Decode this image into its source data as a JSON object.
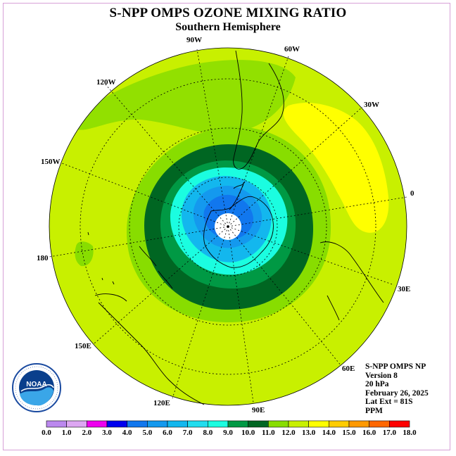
{
  "title": "S-NPP OMPS OZONE MIXING RATIO",
  "subtitle": "Southern Hemisphere",
  "longitude_labels": [
    "90W",
    "60W",
    "30W",
    "0",
    "30E",
    "60E",
    "90E",
    "120E",
    "150E",
    "180",
    "150W",
    "120W"
  ],
  "info": {
    "line1": "S-NPP OMPS NP",
    "line2": "Version 8",
    "line3": "20 hPa",
    "line4": "February 26, 2025",
    "line5": "Lat Ext = 81S",
    "line6": "PPM"
  },
  "logo_text": "NOAA",
  "colorbar": {
    "labels": [
      "0.0",
      "1.0",
      "2.0",
      "3.0",
      "4.0",
      "5.0",
      "6.0",
      "7.0",
      "8.0",
      "9.0",
      "10.0",
      "11.0",
      "12.0",
      "13.0",
      "14.0",
      "15.0",
      "16.0",
      "17.0",
      "18.0"
    ],
    "colors": [
      "#bb88ee",
      "#dda6f2",
      "#ee00ee",
      "#0000ee",
      "#1177ee",
      "#1499ee",
      "#13b7ee",
      "#22ddee",
      "#1bfde0",
      "#009944",
      "#006622",
      "#88dd00",
      "#c8f000",
      "#ffff00",
      "#ffcc00",
      "#ff9900",
      "#ff6600",
      "#ff0000",
      "#996633"
    ]
  }
}
